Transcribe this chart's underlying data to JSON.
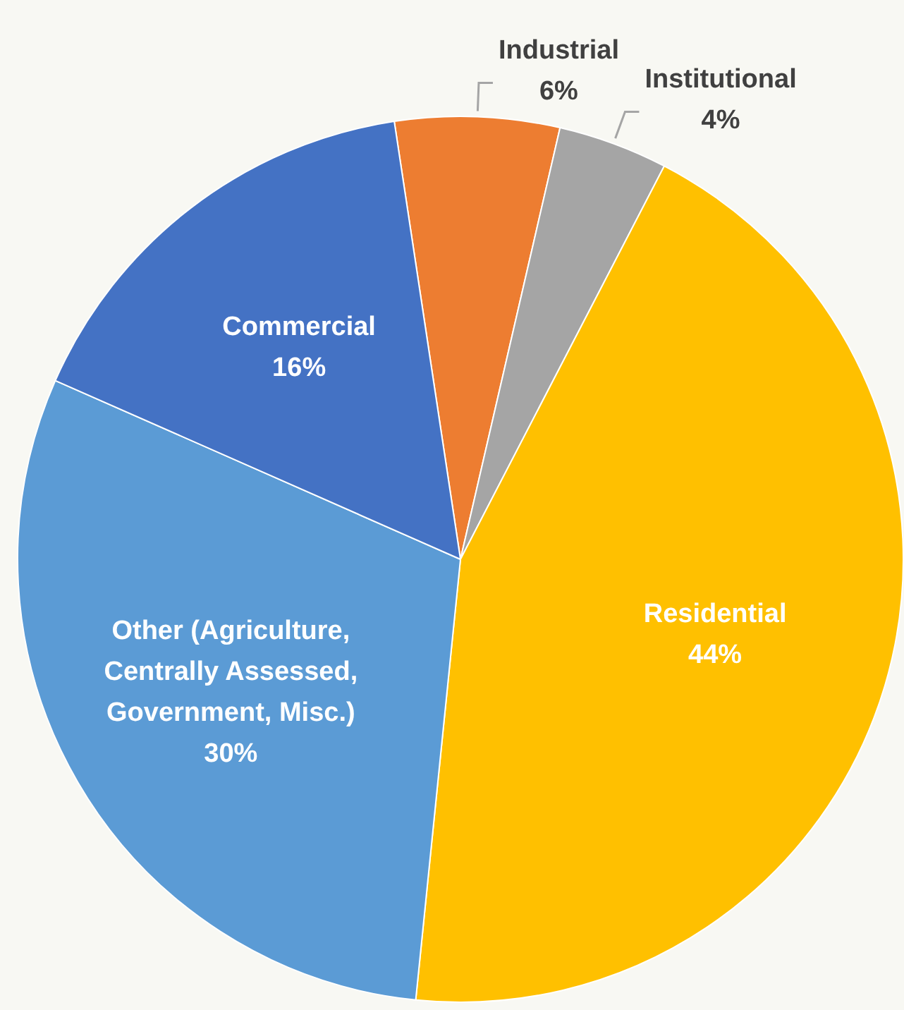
{
  "chart_data": {
    "type": "pie",
    "categories": [
      "Industrial",
      "Institutional",
      "Residential",
      "Other (Agriculture, Centrally Assessed, Government, Misc.)",
      "Commercial"
    ],
    "values": [
      6,
      4,
      44,
      30,
      16
    ],
    "value_labels": [
      "6%",
      "4%",
      "44%",
      "30%",
      "16%"
    ],
    "colors": [
      "#ed7d31",
      "#a5a5a5",
      "#ffc000",
      "#5b9bd5",
      "#4472c4"
    ],
    "legend": false
  }
}
